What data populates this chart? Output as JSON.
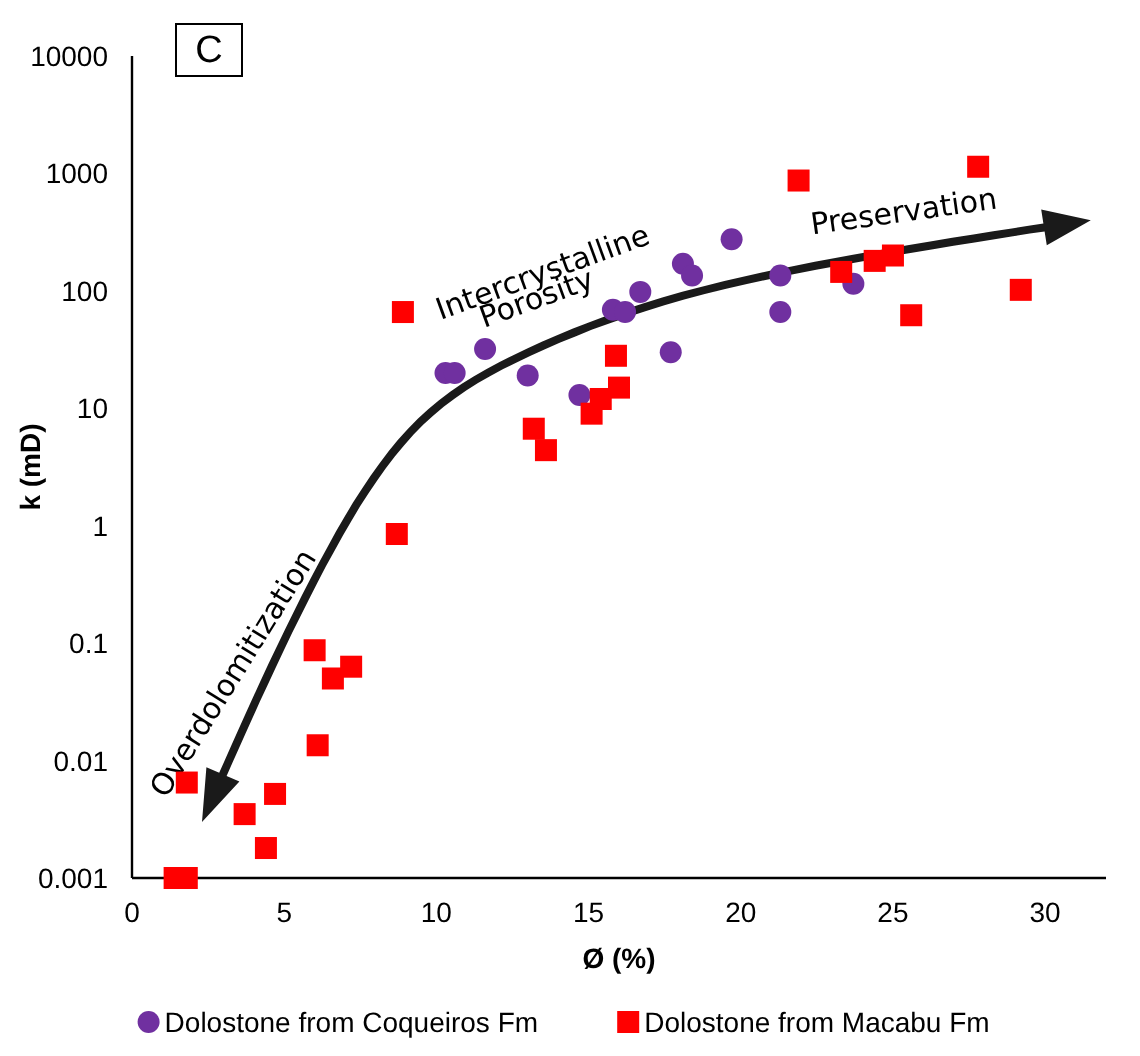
{
  "chart_data": {
    "type": "scatter",
    "title": "C",
    "xlabel": "Ø (%)",
    "ylabel": "k (mD)",
    "log": "y",
    "xlim": [
      0,
      32
    ],
    "xticks": [
      0,
      5,
      10,
      15,
      20,
      25,
      30
    ],
    "ylim": [
      0.001,
      10000
    ],
    "yticks": [
      0.001,
      0.01,
      0.1,
      1,
      10,
      100,
      1000,
      10000
    ],
    "grid": false,
    "legend": "bottom",
    "annotations": [
      "Overdolomitization",
      "Intercrystalline",
      "Porosity",
      "Preservation"
    ],
    "series": [
      {
        "name": "Dolostone from Coqueiros Fm",
        "color": "#7030a0",
        "marker": "circle",
        "x": [
          10.3,
          10.6,
          11.6,
          13.0,
          14.7,
          15.8,
          16.2,
          16.7,
          17.7,
          18.1,
          18.4,
          19.7,
          21.3,
          21.3,
          23.7
        ],
        "values": [
          20,
          20,
          32,
          19,
          13,
          69,
          66,
          98,
          30,
          170,
          135,
          275,
          135,
          66,
          115
        ]
      },
      {
        "name": "Dolostone from Macabu Fm",
        "color": "#ff0000",
        "marker": "square",
        "x": [
          8.9,
          21.9,
          27.8,
          23.3,
          24.4,
          25.0,
          25.6,
          29.2,
          15.9,
          16.0,
          15.4,
          15.1,
          13.2,
          13.6,
          8.7,
          6.0,
          6.6,
          7.2,
          6.1,
          1.8,
          3.7,
          4.7,
          4.4,
          1.4,
          1.8
        ],
        "values": [
          66,
          870,
          1140,
          145,
          180,
          200,
          62,
          102,
          28,
          15,
          12,
          9,
          6.7,
          4.4,
          0.85,
          0.087,
          0.05,
          0.063,
          0.0135,
          0.0065,
          0.0035,
          0.0052,
          0.0018,
          0.001,
          0.001
        ]
      }
    ]
  }
}
